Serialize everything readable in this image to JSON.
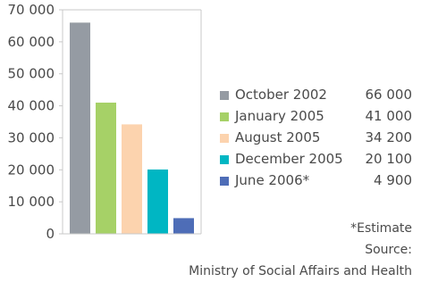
{
  "chart_data": {
    "type": "bar",
    "categories": [
      "October 2002",
      "January 2005",
      "August 2005",
      "December 2005",
      "June 2006*"
    ],
    "values": [
      66000,
      41000,
      34200,
      20100,
      4900
    ],
    "value_labels": [
      "66 000",
      "41 000",
      "34 200",
      "20 100",
      "4 900"
    ],
    "colors": [
      "#959ba3",
      "#a6d167",
      "#fcd3ae",
      "#00b6c3",
      "#4e6db7"
    ],
    "ylim": [
      0,
      70000
    ],
    "yticks": [
      0,
      10000,
      20000,
      30000,
      40000,
      50000,
      60000,
      70000
    ],
    "ytick_labels": [
      "0",
      "10 000",
      "20 000",
      "30 000",
      "40 000",
      "50 000",
      "60 000",
      "70 000"
    ],
    "grid": false,
    "legend_position": "right"
  },
  "notes": {
    "estimate": "*Estimate",
    "source_label": "Source:",
    "source": "Ministry of Social Affairs and Health"
  }
}
